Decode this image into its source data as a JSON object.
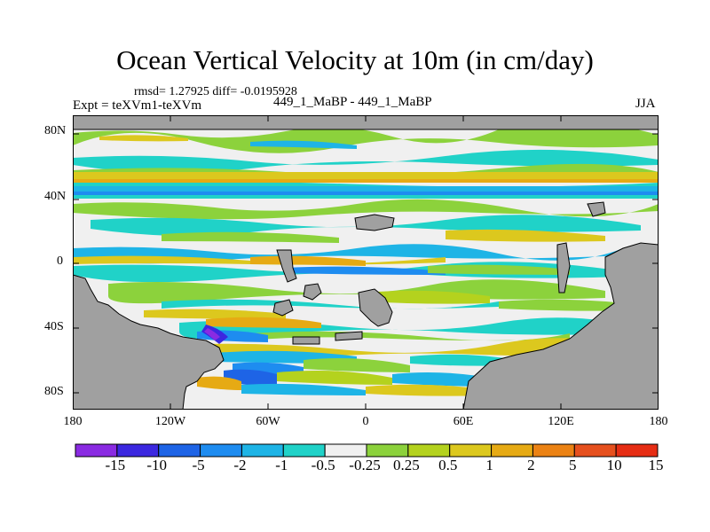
{
  "title": "Ocean Vertical Velocity at 10m (in cm/day)",
  "stats": "rmsd= 1.27925 diff= -0.0195928",
  "expt": "Expt = teXVm1-teXVm",
  "runs": "449_1_MaBP - 449_1_MaBP",
  "season": "JJA",
  "map": {
    "land_color": "#a0a0a0",
    "y_ticks": [
      "80N",
      "40N",
      "0",
      "40S",
      "80S"
    ],
    "x_ticks": [
      "180",
      "120W",
      "60W",
      "0",
      "60E",
      "120E",
      "180"
    ]
  },
  "colorbar": {
    "colors": [
      "#8a2be2",
      "#3c28e0",
      "#1e64e6",
      "#1e8cf0",
      "#1eb4e6",
      "#20d2c8",
      "#f0f0f0",
      "#8cd23c",
      "#b4d21e",
      "#dcc81e",
      "#e6aa14",
      "#eb8214",
      "#e6501e",
      "#e62d14"
    ],
    "labels": [
      "-15",
      "-10",
      "-5",
      "-2",
      "-1",
      "-0.5",
      "-0.25",
      "0.25",
      "0.5",
      "1",
      "2",
      "5",
      "10",
      "15"
    ]
  }
}
